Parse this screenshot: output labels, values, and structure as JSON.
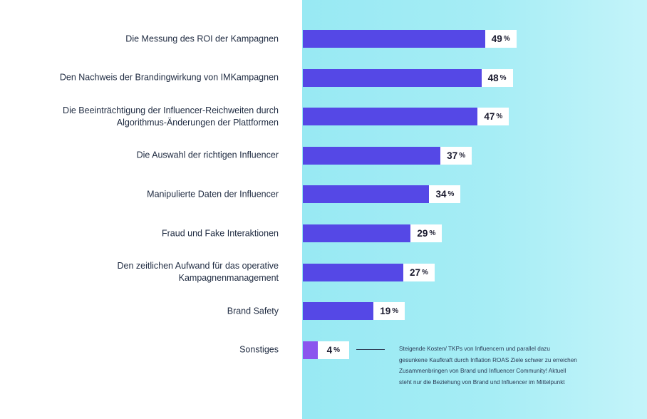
{
  "chart_data": {
    "type": "bar",
    "orientation": "horizontal",
    "categories": [
      "Die Messung des ROI der Kampagnen",
      "Den Nachweis der Brandingwirkung von IMKampagnen",
      "Die Beeinträchtigung der Influencer-Reichweiten durch Algorithmus-Änderungen der Plattformen",
      "Die Auswahl der richtigen Influencer",
      "Manipulierte Daten der Influencer",
      "Fraud und Fake Interaktionen",
      "Den zeitlichen Aufwand für das operative Kampagnenmanagement",
      "Brand Safety",
      "Sonstiges"
    ],
    "label_lines": [
      [
        "Die Messung des ROI der Kampagnen"
      ],
      [
        "Den Nachweis der Brandingwirkung von IMKampagnen"
      ],
      [
        "Die Beeinträchtigung der Influencer-Reichweiten durch",
        "Algorithmus-Änderungen der Plattformen"
      ],
      [
        "Die Auswahl der richtigen Influencer"
      ],
      [
        "Manipulierte Daten der Influencer"
      ],
      [
        "Fraud und Fake Interaktionen"
      ],
      [
        "Den zeitlichen Aufwand für das operative",
        "Kampagnenmanagement"
      ],
      [
        "Brand Safety"
      ],
      [
        "Sonstiges"
      ]
    ],
    "values": [
      49,
      48,
      47,
      37,
      34,
      29,
      27,
      19,
      4
    ],
    "value_unit": "%",
    "xlim": [
      0,
      100
    ],
    "grid": false,
    "legend": "none",
    "colors": {
      "bar": "#5548e6",
      "bar_highlight": "#8b55ee",
      "panel": "#a4ecf5"
    },
    "annotation": {
      "target": "Sonstiges",
      "lines": [
        "Steigende Kosten/ TKPs von Influencern und parallel dazu",
        "gesunkene Kaufkraft durch Inflation ROAS Ziele schwer zu erreichen",
        "Zusammenbringen von Brand und Influencer Community! Aktuell",
        "steht nur die Beziehung von Brand und Influencer im Mittelpunkt"
      ]
    }
  }
}
